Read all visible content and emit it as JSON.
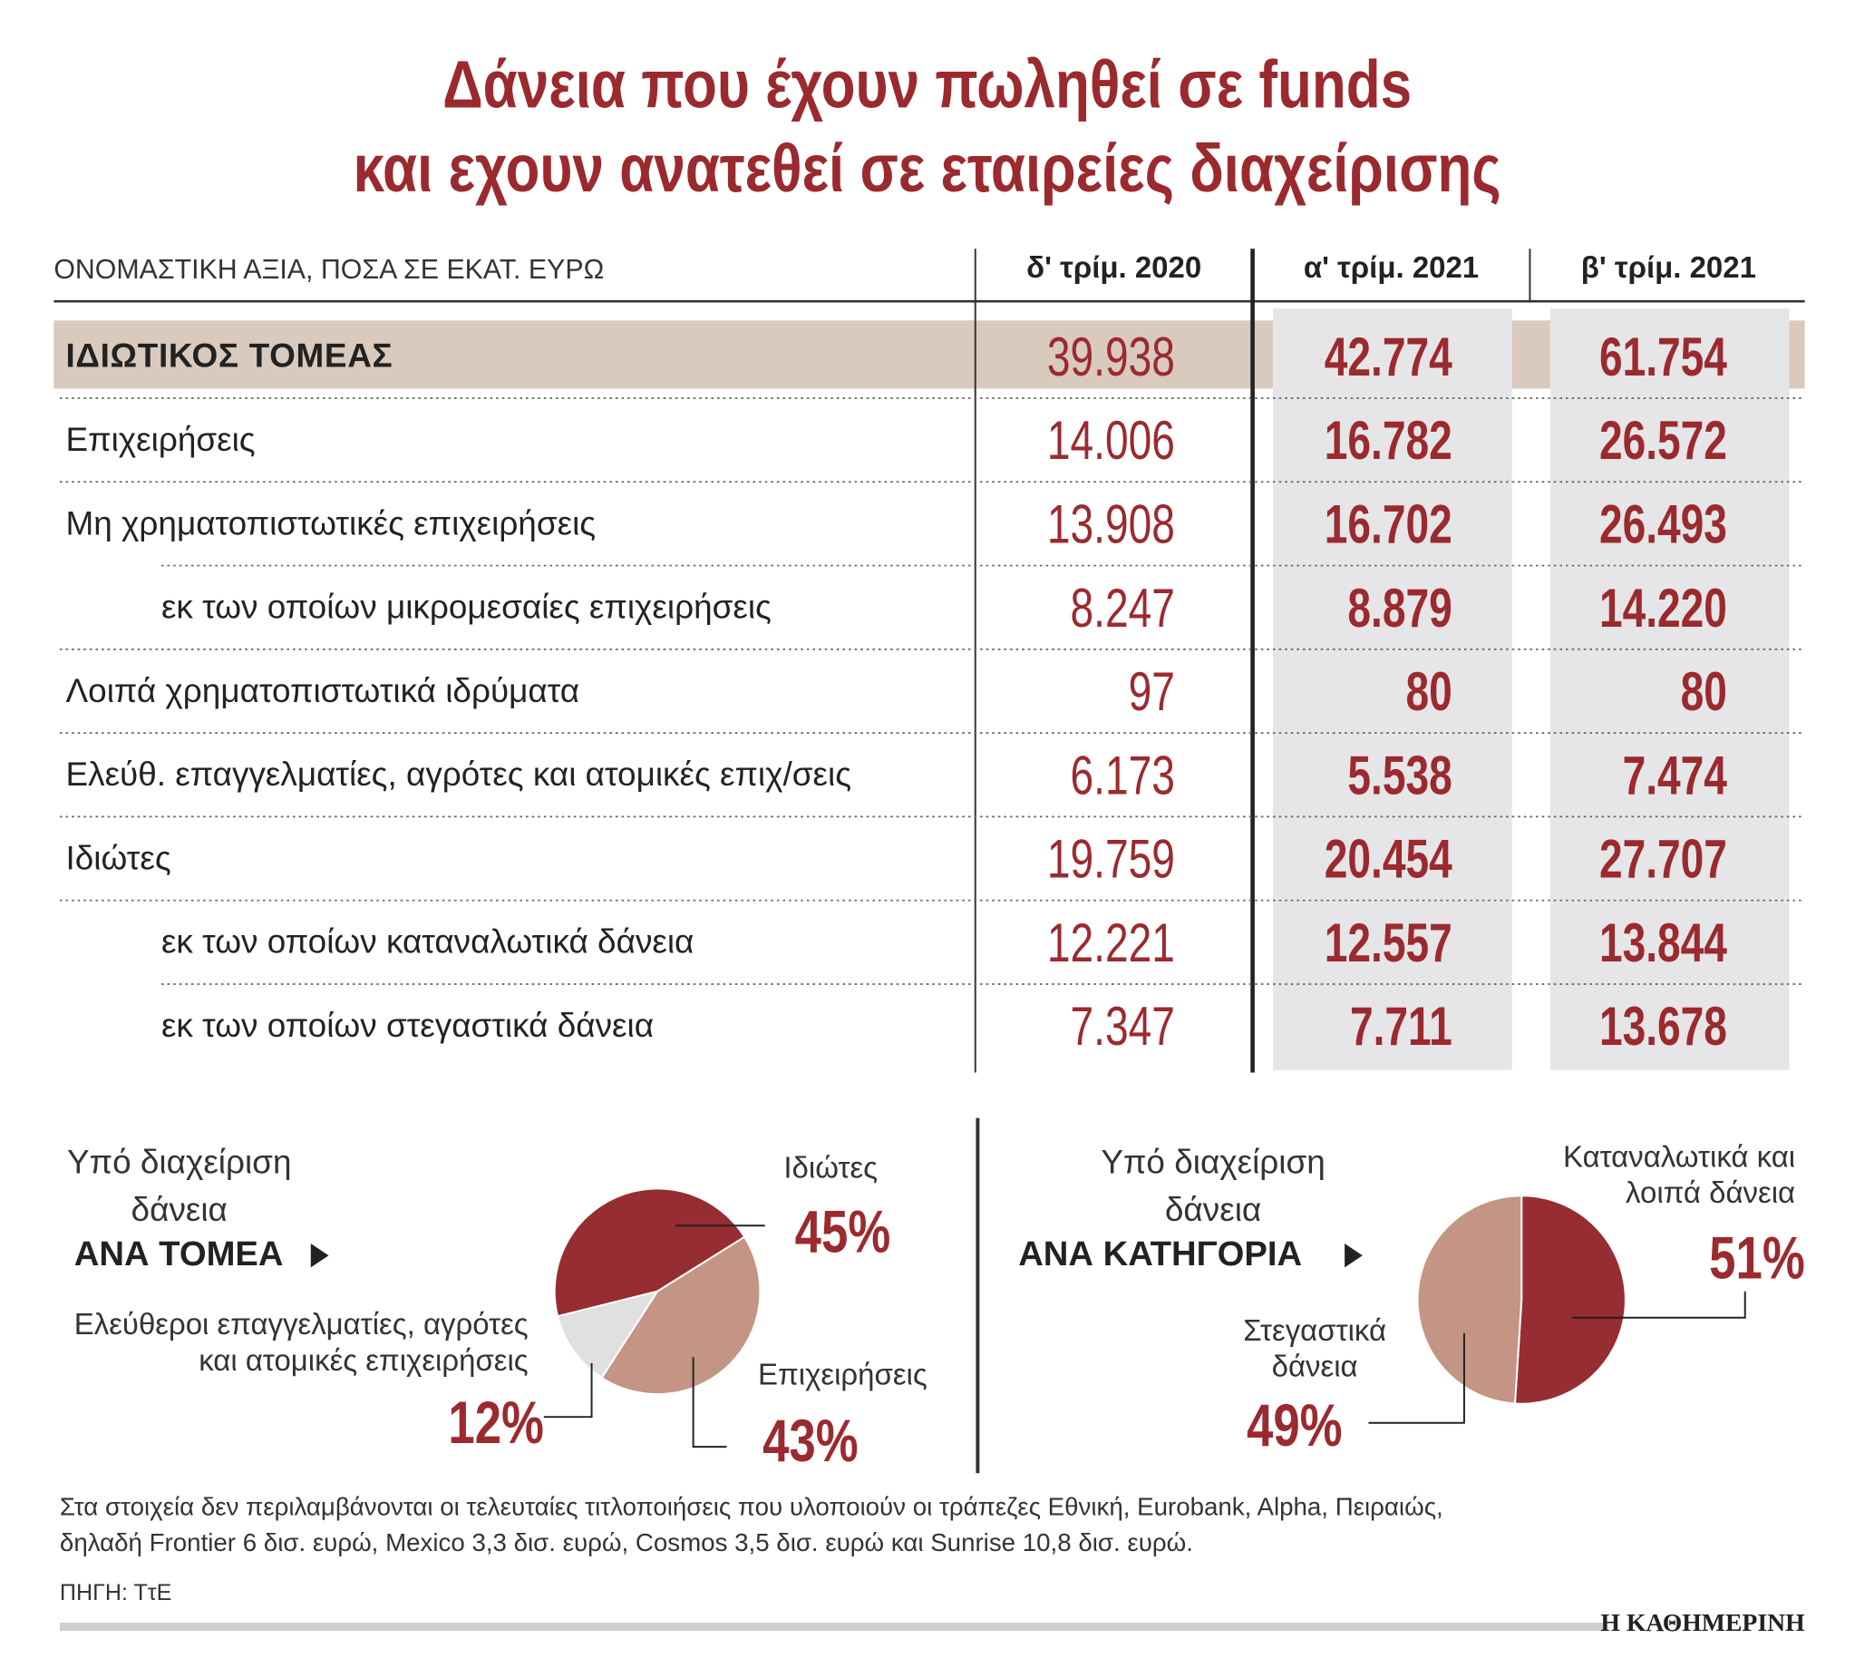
{
  "title": [
    "Δάνεια που έχουν πωληθεί σε funds",
    "και εχουν ανατεθεί σε εταιρείες διαχείρισης"
  ],
  "table": {
    "header": [
      "ΟΝΟΜΑΣΤΙΚΗ ΑΞΙΑ, ΠΟΣΑ ΣΕ ΕΚΑΤ. ΕΥΡΩ",
      "δ' τρίμ. 2020",
      "α' τρίμ. 2021",
      "β' τρίμ. 2021"
    ],
    "rows": [
      [
        "ΙΔΙΩΤΙΚΟΣ ΤΟΜΕΑΣ",
        "39.938",
        "42.774",
        "61.754"
      ],
      [
        "Επιχειρήσεις",
        "14.006",
        "16.782",
        "26.572"
      ],
      [
        "Μη χρηματοπιστωτικές επιχειρήσεις",
        "13.908",
        "16.702",
        "26.493"
      ],
      [
        "εκ των οποίων μικρομεσαίες επιχειρήσεις",
        "8.247",
        "8.879",
        "14.220"
      ],
      [
        "Λοιπά χρηματοπιστωτικά ιδρύματα",
        "97",
        "80",
        "80"
      ],
      [
        "Ελεύθ. επαγγελματίες, αγρότες και ατομικές επιχ/σεις",
        "6.173",
        "5.538",
        "7.474"
      ],
      [
        "Ιδιώτες",
        "19.759",
        "20.454",
        "27.707"
      ],
      [
        "εκ των οποίων καταναλωτικά δάνεια",
        "12.221",
        "12.557",
        "13.844"
      ],
      [
        "εκ των οποίων στεγαστικά δάνεια",
        "7.347",
        "7.711",
        "13.678"
      ]
    ]
  },
  "chart_data": [
    {
      "type": "pie",
      "title": "Υπό διαχείριση δάνεια",
      "subtitle": "ΑΝΑ ΤΟΜΕΑ",
      "categories": [
        "Ιδιώτες",
        "Επιχειρήσεις",
        "Ελεύθεροι επαγγελματίες, αγρότες και ατομικές επιχειρήσεις"
      ],
      "values": [
        45,
        43,
        12
      ],
      "value_labels": [
        "45%",
        "43%",
        "12%"
      ],
      "colors": [
        "#962d32",
        "#c49584",
        "#e0e0e0"
      ]
    },
    {
      "type": "pie",
      "title": "Υπό διαχείριση δάνεια",
      "subtitle": "ΑΝΑ ΚΑΤΗΓΟΡΙΑ",
      "categories": [
        "Καταναλωτικά και λοιπά δάνεια",
        "Στεγαστικά δάνεια"
      ],
      "values": [
        51,
        49
      ],
      "value_labels": [
        "51%",
        "49%"
      ],
      "colors": [
        "#962d32",
        "#c49584"
      ]
    }
  ],
  "note": [
    "Στα στοιχεία δεν περιλαμβάνονται οι τελευταίες τιτλοποιήσεις που υλοποιούν οι τράπεζες Εθνική, Eurobank, Alpha, Πειραιώς,",
    "δηλαδή Frontier 6 δισ. ευρώ, Mexico 3,3 δισ. ευρώ, Cosmos 3,5 δισ. ευρώ και Sunrise 10,8 δισ. ευρώ."
  ],
  "source": "ΠΗΓΗ: ΤτΕ",
  "brand": "Η ΚΑΘΗΜΕΡΙΝΗ"
}
